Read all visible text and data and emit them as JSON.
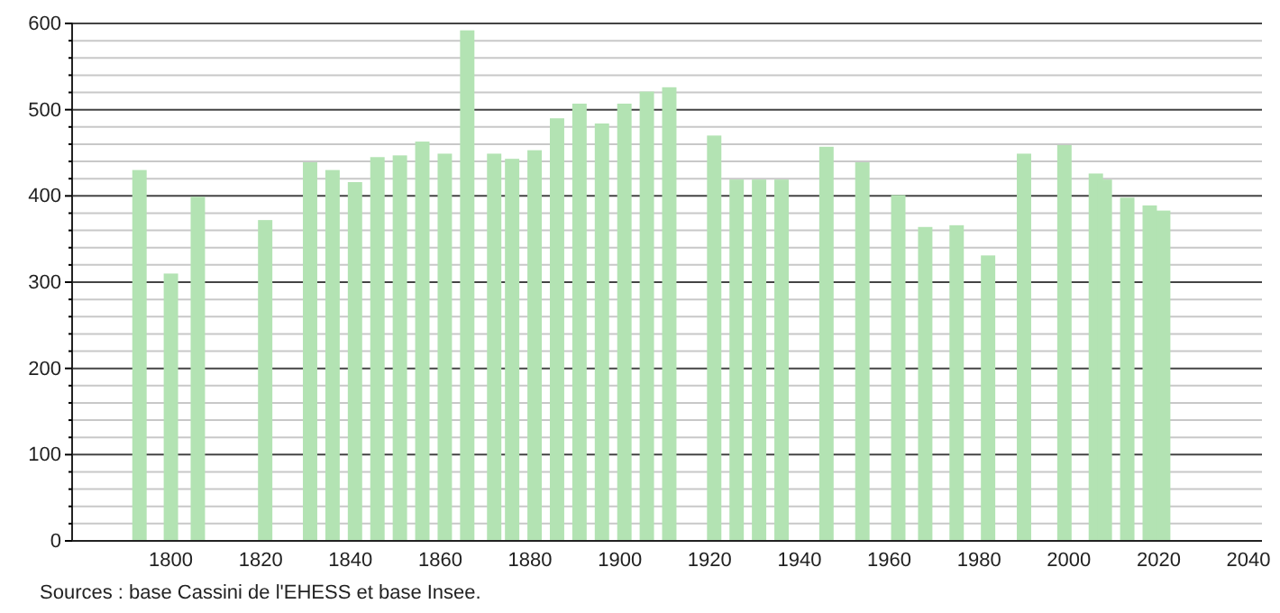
{
  "chart_data": {
    "type": "bar",
    "x": [
      1793,
      1800,
      1806,
      1821,
      1831,
      1836,
      1841,
      1846,
      1851,
      1856,
      1861,
      1866,
      1872,
      1876,
      1881,
      1886,
      1891,
      1896,
      1901,
      1906,
      1911,
      1921,
      1926,
      1931,
      1936,
      1946,
      1954,
      1962,
      1968,
      1975,
      1982,
      1990,
      1999,
      2006,
      2008,
      2013,
      2018,
      2021
    ],
    "values": [
      430,
      310,
      399,
      372,
      439,
      430,
      416,
      445,
      447,
      463,
      449,
      592,
      449,
      443,
      453,
      490,
      507,
      484,
      507,
      521,
      526,
      470,
      419,
      419,
      419,
      457,
      439,
      401,
      364,
      366,
      331,
      449,
      459,
      426,
      419,
      398,
      389,
      383
    ],
    "color": "#b3e3b3",
    "xlim": [
      1778,
      2043
    ],
    "xticks": [
      1800,
      1820,
      1840,
      1860,
      1880,
      1900,
      1920,
      1940,
      1960,
      1980,
      2000,
      2020,
      2040
    ],
    "ylim": [
      0,
      600
    ],
    "yticks": [
      0,
      {
        "value": 20,
        "label": null
      },
      {
        "value": 40,
        "label": null
      },
      {
        "value": 60,
        "label": null
      },
      {
        "value": 80,
        "label": null
      },
      100,
      {
        "value": 120,
        "label": null
      },
      {
        "value": 140,
        "label": null
      },
      {
        "value": 160,
        "label": null
      },
      {
        "value": 180,
        "label": null
      },
      200,
      {
        "value": 220,
        "label": null
      },
      {
        "value": 240,
        "label": null
      },
      {
        "value": 260,
        "label": null
      },
      {
        "value": 280,
        "label": null
      },
      300,
      {
        "value": 320,
        "label": null
      },
      {
        "value": 340,
        "label": null
      },
      {
        "value": 360,
        "label": null
      },
      {
        "value": 380,
        "label": null
      },
      400,
      {
        "value": 420,
        "label": null
      },
      {
        "value": 440,
        "label": null
      },
      {
        "value": 460,
        "label": null
      },
      {
        "value": 480,
        "label": null
      },
      500,
      {
        "value": 520,
        "label": null
      },
      {
        "value": 540,
        "label": null
      },
      {
        "value": 560,
        "label": null
      },
      {
        "value": 580,
        "label": null
      },
      600
    ],
    "grid": true,
    "annotations": [
      "Sources : base Cassini de l'EHESS et base Insee."
    ]
  }
}
